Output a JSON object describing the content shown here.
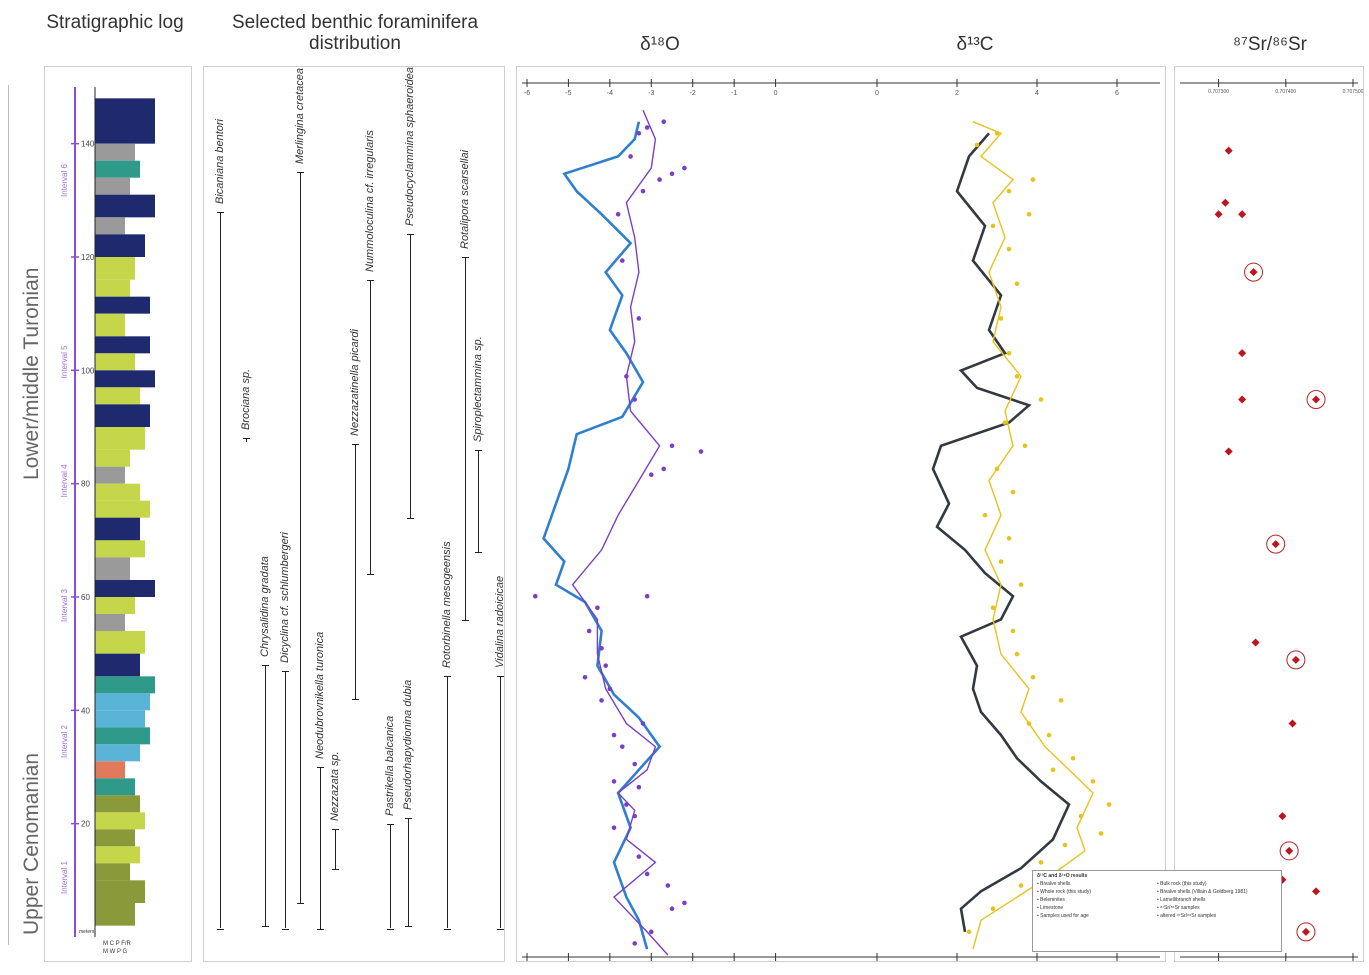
{
  "headers": {
    "strat": "Stratigraphic log",
    "benthic": "Selected benthic foraminifera distribution",
    "d18o": "δ¹⁸O",
    "d13c": "δ¹³C",
    "sr": "⁸⁷Sr/⁸⁶Sr"
  },
  "stages": {
    "upper": "Lower/middle Turonian",
    "lower": "Upper Cenomanian"
  },
  "log": {
    "depth_ticks": [
      "140",
      "120",
      "100",
      "80",
      "60",
      "40",
      "20"
    ],
    "intervals": [
      "Interval 6",
      "Interval 5",
      "Interval 4",
      "Interval 3",
      "Interval 2",
      "Interval 1"
    ],
    "legend_row1": "M  C  P  F/R",
    "legend_row2": "M  W  P  G",
    "base_label": "meters",
    "colors": {
      "navy": "#1f2a6e",
      "lime": "#c5d64a",
      "olive": "#8a9a3a",
      "teal": "#2f9a8a",
      "sky": "#5ab4d8",
      "grey": "#9a9a9a",
      "salmon": "#e07a5a"
    }
  },
  "taxa": [
    {
      "name": "Bicaniana bentori",
      "top": 128,
      "bottom": 1.5
    },
    {
      "name": "Chrysalidina gradata",
      "top": 48,
      "bottom": 2
    },
    {
      "name": "Dicyclina cf. schlumbergeri",
      "top": 47,
      "bottom": 1.5
    },
    {
      "name": "Merlingina cretacea",
      "top": 135,
      "bottom": 6
    },
    {
      "name": "Neodubrovnikella turonica",
      "top": 30,
      "bottom": 1.5
    },
    {
      "name": "Nezzazata sp.",
      "top": 19,
      "bottom": 12
    },
    {
      "name": "Nezzazatinella picardi",
      "top": 87,
      "bottom": 42
    },
    {
      "name": "Nummoloculina cf. irregularis",
      "top": 116,
      "bottom": 64
    },
    {
      "name": "Pastrikella balcanica",
      "top": 20,
      "bottom": 1.5
    },
    {
      "name": "Pseudocyclammina sphaeroidea",
      "top": 124,
      "bottom": 74
    },
    {
      "name": "Pseudorhapydionina dubia",
      "top": 21,
      "bottom": 2
    },
    {
      "name": "Rotalipora scarsellai",
      "top": 120,
      "bottom": 56
    },
    {
      "name": "Rotorbinella mesogeensis",
      "top": 46,
      "bottom": 1.5
    },
    {
      "name": "Spiroplectammina sp.",
      "top": 86,
      "bottom": 68
    },
    {
      "name": "Vidalina radoicicae",
      "top": 46,
      "bottom": 1.5
    },
    {
      "name": "Brociana sp.",
      "top": 88,
      "bottom": 88
    }
  ],
  "chart_data": [
    {
      "type": "line",
      "title": "δ¹⁸O",
      "xlim": [
        -6,
        1
      ],
      "ylim": [
        0,
        150
      ],
      "x_ticks": [
        -6,
        -5,
        -4,
        -3,
        -2,
        -1,
        0
      ],
      "series": [
        {
          "color": "#2e7fd0",
          "points": [
            [
              -3.1,
              1
            ],
            [
              -3.3,
              6
            ],
            [
              -3.6,
              10
            ],
            [
              -3.9,
              16
            ],
            [
              -3.5,
              22
            ],
            [
              -3.8,
              28
            ],
            [
              -3.3,
              32
            ],
            [
              -2.8,
              36
            ],
            [
              -3.3,
              41
            ],
            [
              -3.9,
              45
            ],
            [
              -4.3,
              50
            ],
            [
              -4.2,
              56
            ],
            [
              -4.6,
              61
            ],
            [
              -5.3,
              64
            ],
            [
              -5.1,
              68
            ],
            [
              -5.6,
              72
            ],
            [
              -5.3,
              78
            ],
            [
              -5.0,
              84
            ],
            [
              -4.8,
              90
            ],
            [
              -3.7,
              93
            ],
            [
              -3.2,
              99
            ],
            [
              -3.6,
              104
            ],
            [
              -4.0,
              108
            ],
            [
              -3.7,
              114
            ],
            [
              -4.1,
              118
            ],
            [
              -3.5,
              123
            ],
            [
              -4.2,
              128
            ],
            [
              -4.8,
              132
            ],
            [
              -5.1,
              135
            ],
            [
              -3.8,
              138
            ],
            [
              -3.4,
              141
            ],
            [
              -3.3,
              144
            ]
          ]
        },
        {
          "color": "#7a3fc4",
          "points": [
            [
              -2.6,
              0
            ],
            [
              -3.1,
              4
            ],
            [
              -3.9,
              10
            ],
            [
              -2.9,
              16
            ],
            [
              -3.6,
              20
            ],
            [
              -3.4,
              25
            ],
            [
              -3.8,
              28
            ],
            [
              -3.1,
              32
            ],
            [
              -2.9,
              36
            ],
            [
              -3.6,
              40
            ],
            [
              -4.1,
              46
            ],
            [
              -4.3,
              52
            ],
            [
              -4.3,
              58
            ],
            [
              -4.9,
              64
            ],
            [
              -4.2,
              70
            ],
            [
              -3.8,
              76
            ],
            [
              -3.3,
              82
            ],
            [
              -2.8,
              88
            ],
            [
              -3.5,
              94
            ],
            [
              -3.6,
              100
            ],
            [
              -3.4,
              106
            ],
            [
              -3.5,
              112
            ],
            [
              -3.3,
              118
            ],
            [
              -3.4,
              124
            ],
            [
              -3.6,
              130
            ],
            [
              -3.0,
              136
            ],
            [
              -2.9,
              141
            ],
            [
              -3.2,
              146
            ]
          ]
        }
      ],
      "scatter": [
        {
          "color": "#7a3fc4",
          "points": [
            [
              -3.4,
              2
            ],
            [
              -3.0,
              4
            ],
            [
              -2.5,
              8
            ],
            [
              -2.2,
              9
            ],
            [
              -2.6,
              12
            ],
            [
              -3.1,
              14
            ],
            [
              -3.3,
              17
            ],
            [
              -3.9,
              22
            ],
            [
              -3.4,
              24
            ],
            [
              -3.6,
              26
            ],
            [
              -3.3,
              29
            ],
            [
              -3.9,
              30
            ],
            [
              -3.4,
              33
            ],
            [
              -3.7,
              36
            ],
            [
              -3.9,
              38
            ],
            [
              -3.2,
              40
            ],
            [
              -4.2,
              44
            ],
            [
              -4.0,
              46
            ],
            [
              -4.6,
              48
            ],
            [
              -4.1,
              50
            ],
            [
              -4.2,
              53
            ],
            [
              -4.5,
              56
            ],
            [
              -4.3,
              60
            ],
            [
              -5.8,
              62
            ],
            [
              -3.1,
              62
            ],
            [
              -2.7,
              84
            ],
            [
              -3.0,
              83
            ],
            [
              -2.5,
              88
            ],
            [
              -1.8,
              87
            ],
            [
              -3.4,
              96
            ],
            [
              -3.6,
              100
            ],
            [
              -3.3,
              110
            ],
            [
              -3.7,
              120
            ],
            [
              -3.8,
              128
            ],
            [
              -3.2,
              132
            ],
            [
              -2.8,
              134
            ],
            [
              -2.5,
              135
            ],
            [
              -2.2,
              136
            ],
            [
              -3.5,
              138
            ],
            [
              -3.3,
              142
            ],
            [
              -3.1,
              143
            ],
            [
              -2.7,
              144
            ]
          ]
        }
      ]
    },
    {
      "type": "line",
      "title": "δ¹³C",
      "xlim": [
        -1,
        7
      ],
      "ylim": [
        0,
        150
      ],
      "x_ticks": [
        0,
        2,
        4,
        6
      ],
      "series": [
        {
          "color": "#333940",
          "points": [
            [
              2.2,
              4
            ],
            [
              2.1,
              8
            ],
            [
              2.6,
              11
            ],
            [
              3.6,
              15
            ],
            [
              4.4,
              20
            ],
            [
              4.8,
              26
            ],
            [
              4.1,
              30
            ],
            [
              3.5,
              34
            ],
            [
              3.1,
              38
            ],
            [
              2.6,
              42
            ],
            [
              2.4,
              46
            ],
            [
              2.5,
              50
            ],
            [
              2.1,
              55
            ],
            [
              3.1,
              58
            ],
            [
              3.4,
              62
            ],
            [
              2.7,
              66
            ],
            [
              2.2,
              70
            ],
            [
              1.5,
              74
            ],
            [
              1.8,
              78
            ],
            [
              1.4,
              84
            ],
            [
              1.6,
              88
            ],
            [
              3.3,
              92
            ],
            [
              3.8,
              95
            ],
            [
              2.5,
              98
            ],
            [
              2.1,
              101
            ],
            [
              3.2,
              104
            ],
            [
              2.8,
              108
            ],
            [
              3.1,
              114
            ],
            [
              2.4,
              120
            ],
            [
              2.7,
              126
            ],
            [
              2.0,
              132
            ],
            [
              2.3,
              138
            ],
            [
              2.8,
              142
            ]
          ]
        },
        {
          "color": "#e8c21a",
          "points": [
            [
              2.4,
              1
            ],
            [
              2.6,
              6
            ],
            [
              3.5,
              10
            ],
            [
              4.4,
              14
            ],
            [
              5.2,
              18
            ],
            [
              5.0,
              22
            ],
            [
              5.4,
              28
            ],
            [
              4.8,
              32
            ],
            [
              4.2,
              36
            ],
            [
              3.6,
              42
            ],
            [
              3.8,
              46
            ],
            [
              3.1,
              52
            ],
            [
              2.9,
              58
            ],
            [
              3.1,
              64
            ],
            [
              2.7,
              70
            ],
            [
              3.1,
              76
            ],
            [
              2.8,
              82
            ],
            [
              3.4,
              88
            ],
            [
              3.2,
              94
            ],
            [
              3.6,
              100
            ],
            [
              2.9,
              106
            ],
            [
              3.1,
              112
            ],
            [
              2.8,
              118
            ],
            [
              3.2,
              124
            ],
            [
              2.9,
              130
            ],
            [
              3.4,
              134
            ],
            [
              2.6,
              138
            ],
            [
              3.1,
              142
            ],
            [
              2.4,
              144
            ]
          ]
        }
      ],
      "scatter": [
        {
          "color": "#e8c21a",
          "points": [
            [
              2.3,
              4
            ],
            [
              2.9,
              8
            ],
            [
              3.6,
              12
            ],
            [
              4.1,
              16
            ],
            [
              4.7,
              19
            ],
            [
              5.6,
              21
            ],
            [
              5.1,
              24
            ],
            [
              5.8,
              26
            ],
            [
              5.4,
              30
            ],
            [
              4.4,
              32
            ],
            [
              4.9,
              34
            ],
            [
              4.3,
              38
            ],
            [
              3.8,
              40
            ],
            [
              4.6,
              44
            ],
            [
              3.9,
              48
            ],
            [
              3.5,
              52
            ],
            [
              3.4,
              56
            ],
            [
              2.9,
              60
            ],
            [
              3.6,
              64
            ],
            [
              3.1,
              68
            ],
            [
              3.3,
              72
            ],
            [
              2.7,
              76
            ],
            [
              3.4,
              80
            ],
            [
              3.0,
              84
            ],
            [
              3.7,
              88
            ],
            [
              3.2,
              92
            ],
            [
              4.1,
              96
            ],
            [
              3.5,
              100
            ],
            [
              3.3,
              104
            ],
            [
              3.1,
              110
            ],
            [
              3.5,
              116
            ],
            [
              3.3,
              122
            ],
            [
              2.9,
              126
            ],
            [
              3.8,
              128
            ],
            [
              3.3,
              132
            ],
            [
              3.9,
              134
            ],
            [
              2.5,
              140
            ],
            [
              3.0,
              142
            ]
          ]
        }
      ]
    },
    {
      "type": "scatter",
      "title": "⁸⁷Sr/⁸⁶Sr",
      "xlim": [
        0.70725,
        0.7075
      ],
      "ylim": [
        0,
        150
      ],
      "x_ticks": [
        0.7073,
        0.7074,
        0.7075
      ],
      "x_tick_labels": [
        "0.707300",
        "0.707400",
        "0.707500"
      ],
      "points": [
        {
          "x": 0.707315,
          "y": 139,
          "circled": false
        },
        {
          "x": 0.7073,
          "y": 128,
          "circled": false
        },
        {
          "x": 0.70731,
          "y": 130,
          "circled": false
        },
        {
          "x": 0.707335,
          "y": 128,
          "circled": false
        },
        {
          "x": 0.707352,
          "y": 118,
          "circled": true
        },
        {
          "x": 0.707335,
          "y": 104,
          "circled": false
        },
        {
          "x": 0.707335,
          "y": 96,
          "circled": false
        },
        {
          "x": 0.707445,
          "y": 96,
          "circled": true
        },
        {
          "x": 0.707315,
          "y": 87,
          "circled": false
        },
        {
          "x": 0.707385,
          "y": 71,
          "circled": true
        },
        {
          "x": 0.707355,
          "y": 54,
          "circled": false
        },
        {
          "x": 0.707415,
          "y": 51,
          "circled": true
        },
        {
          "x": 0.70741,
          "y": 40,
          "circled": false
        },
        {
          "x": 0.707395,
          "y": 24,
          "circled": false
        },
        {
          "x": 0.707405,
          "y": 18,
          "circled": true
        },
        {
          "x": 0.707395,
          "y": 13,
          "circled": false
        },
        {
          "x": 0.707445,
          "y": 11,
          "circled": false
        },
        {
          "x": 0.70743,
          "y": 4,
          "circled": true
        }
      ]
    }
  ],
  "legend": {
    "title": "δ¹³C and δ¹⁸O results",
    "items": [
      "Bivalve shells",
      "Bulk rock (this study)",
      "Whole rock (this study)",
      "Bivalve shells (Villain & Goldberg 1981)",
      "Belemnites",
      "Lamellibranch shells",
      "Limestone",
      "⁸⁷Sr/⁸⁶Sr samples",
      "Samples used for age",
      "altered ⁸⁷Sr/⁸⁶Sr samples"
    ]
  }
}
